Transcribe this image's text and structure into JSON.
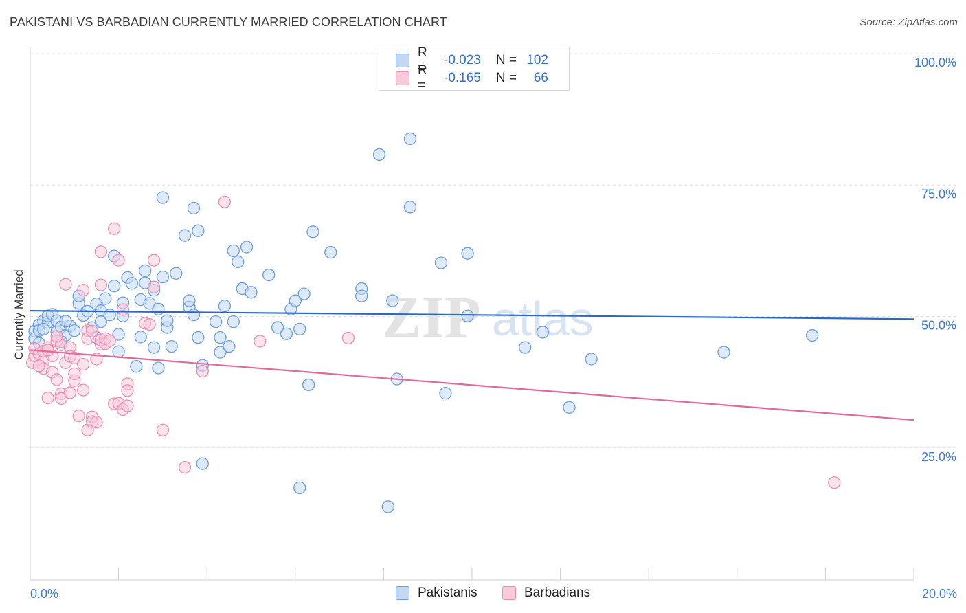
{
  "header": {
    "title": "PAKISTANI VS BARBADIAN CURRENTLY MARRIED CORRELATION CHART",
    "source": "Source: ZipAtlas.com"
  },
  "watermark": {
    "zip": "ZIP",
    "atlas": "atlas"
  },
  "legend_top": {
    "rows": [
      {
        "r_label": "R =",
        "r_value": "-0.023",
        "n_label": "N =",
        "n_value": "102",
        "color": "#6a9ee0"
      },
      {
        "r_label": "R =",
        "r_value": "-0.165",
        "n_label": "N =",
        "n_value": "66",
        "color": "#ea8fb0"
      }
    ]
  },
  "colors": {
    "blue_fill": "#c4d8f4",
    "blue_stroke": "#6a9ee0",
    "blue_line": "#2469cc",
    "pink_fill": "#f8cada",
    "pink_stroke": "#ea8fb0",
    "pink_line": "#e2689a",
    "axis_text": "#3d7bd1",
    "grid": "#e2e2e2"
  },
  "chart_data": {
    "type": "scatter",
    "title": "PAKISTANI VS BARBADIAN CURRENTLY MARRIED CORRELATION CHART",
    "xlabel": "",
    "ylabel": "Currently Married",
    "xlim": [
      0,
      20
    ],
    "ylim": [
      0,
      100
    ],
    "x_tick_labels": [
      "0.0%",
      "20.0%"
    ],
    "y_tick_labels": [
      "25.0%",
      "50.0%",
      "75.0%",
      "100.0%"
    ],
    "y_ticks": [
      25,
      50,
      75,
      100
    ],
    "grid": true,
    "legend": [
      "Pakistanis",
      "Barbadians"
    ],
    "series": [
      {
        "name": "Pakistanis",
        "stats": {
          "R": -0.023,
          "N": 102
        },
        "trend": {
          "x": [
            0,
            20
          ],
          "y": [
            51.1,
            49.5
          ]
        },
        "points": [
          [
            0.1,
            47.2
          ],
          [
            0.1,
            45.8
          ],
          [
            0.2,
            48.4
          ],
          [
            0.2,
            47.3
          ],
          [
            0.3,
            49.2
          ],
          [
            0.2,
            44.9
          ],
          [
            0.4,
            48.9
          ],
          [
            0.4,
            50.1
          ],
          [
            0.5,
            50.4
          ],
          [
            0.6,
            49.2
          ],
          [
            0.6,
            47.1
          ],
          [
            0.7,
            48.0
          ],
          [
            0.8,
            46.4
          ],
          [
            0.9,
            48.2
          ],
          [
            1.0,
            47.3
          ],
          [
            1.1,
            52.5
          ],
          [
            1.1,
            53.9
          ],
          [
            1.2,
            50.2
          ],
          [
            1.3,
            51.0
          ],
          [
            1.4,
            47.9
          ],
          [
            1.5,
            52.4
          ],
          [
            1.6,
            51.1
          ],
          [
            1.6,
            49.0
          ],
          [
            1.7,
            53.4
          ],
          [
            1.8,
            50.3
          ],
          [
            1.9,
            55.8
          ],
          [
            1.9,
            61.5
          ],
          [
            2.0,
            43.3
          ],
          [
            2.0,
            46.6
          ],
          [
            2.1,
            50.1
          ],
          [
            2.1,
            52.6
          ],
          [
            2.2,
            57.4
          ],
          [
            2.3,
            56.3
          ],
          [
            2.4,
            40.5
          ],
          [
            2.5,
            53.2
          ],
          [
            2.5,
            46.1
          ],
          [
            2.6,
            56.4
          ],
          [
            2.6,
            58.7
          ],
          [
            2.7,
            52.5
          ],
          [
            2.8,
            55.0
          ],
          [
            2.8,
            44.1
          ],
          [
            2.9,
            40.2
          ],
          [
            2.9,
            51.4
          ],
          [
            3.0,
            57.5
          ],
          [
            3.0,
            72.6
          ],
          [
            3.1,
            47.9
          ],
          [
            3.1,
            49.2
          ],
          [
            3.2,
            44.3
          ],
          [
            3.3,
            58.2
          ],
          [
            3.5,
            65.4
          ],
          [
            3.6,
            51.8
          ],
          [
            3.6,
            53.0
          ],
          [
            3.7,
            70.6
          ],
          [
            3.7,
            50.3
          ],
          [
            3.8,
            66.3
          ],
          [
            3.8,
            46.0
          ],
          [
            3.9,
            40.7
          ],
          [
            3.9,
            22.0
          ],
          [
            4.2,
            49.0
          ],
          [
            4.3,
            43.2
          ],
          [
            4.3,
            46.0
          ],
          [
            4.4,
            52.0
          ],
          [
            4.5,
            44.3
          ],
          [
            4.6,
            49.0
          ],
          [
            4.6,
            62.5
          ],
          [
            4.7,
            60.4
          ],
          [
            4.8,
            55.3
          ],
          [
            5.0,
            54.6
          ],
          [
            4.9,
            63.2
          ],
          [
            5.4,
            57.9
          ],
          [
            5.6,
            47.9
          ],
          [
            5.8,
            46.7
          ],
          [
            5.9,
            51.4
          ],
          [
            6.0,
            53.0
          ],
          [
            6.1,
            47.6
          ],
          [
            6.1,
            17.4
          ],
          [
            6.2,
            54.3
          ],
          [
            6.3,
            37.0
          ],
          [
            6.4,
            66.1
          ],
          [
            6.8,
            62.2
          ],
          [
            7.5,
            55.3
          ],
          [
            7.5,
            53.9
          ],
          [
            7.9,
            80.8
          ],
          [
            8.1,
            13.8
          ],
          [
            8.2,
            53.0
          ],
          [
            8.3,
            38.1
          ],
          [
            8.6,
            70.8
          ],
          [
            8.6,
            83.8
          ],
          [
            9.3,
            60.2
          ],
          [
            9.4,
            35.4
          ],
          [
            9.9,
            62.0
          ],
          [
            9.9,
            50.1
          ],
          [
            11.2,
            44.1
          ],
          [
            11.6,
            47.0
          ],
          [
            12.2,
            32.7
          ],
          [
            12.7,
            41.9
          ],
          [
            15.7,
            43.2
          ],
          [
            17.7,
            46.4
          ],
          [
            0.3,
            47.6
          ],
          [
            0.7,
            45.2
          ],
          [
            1.5,
            46.0
          ],
          [
            0.8,
            49.1
          ]
        ]
      },
      {
        "name": "Barbadians",
        "stats": {
          "R": -0.165,
          "N": 66
        },
        "trend": {
          "x": [
            0,
            20
          ],
          "y": [
            43.6,
            30.3
          ]
        },
        "points": [
          [
            0.05,
            41.2
          ],
          [
            0.1,
            42.5
          ],
          [
            0.1,
            43.9
          ],
          [
            0.2,
            42.9
          ],
          [
            0.3,
            41.6
          ],
          [
            0.3,
            40.1
          ],
          [
            0.3,
            43.4
          ],
          [
            0.4,
            44.1
          ],
          [
            0.4,
            34.5
          ],
          [
            0.5,
            39.4
          ],
          [
            0.5,
            42.5
          ],
          [
            0.6,
            45.3
          ],
          [
            0.6,
            38.0
          ],
          [
            0.7,
            35.3
          ],
          [
            0.7,
            44.6
          ],
          [
            0.7,
            34.4
          ],
          [
            0.8,
            56.1
          ],
          [
            0.8,
            41.2
          ],
          [
            0.9,
            35.5
          ],
          [
            0.9,
            44.1
          ],
          [
            0.9,
            42.4
          ],
          [
            1.0,
            37.8
          ],
          [
            1.0,
            42.1
          ],
          [
            1.1,
            31.1
          ],
          [
            1.2,
            40.9
          ],
          [
            1.2,
            36.0
          ],
          [
            1.2,
            55.0
          ],
          [
            1.3,
            28.4
          ],
          [
            1.3,
            47.3
          ],
          [
            1.3,
            45.8
          ],
          [
            1.4,
            30.9
          ],
          [
            1.4,
            30.0
          ],
          [
            1.4,
            47.2
          ],
          [
            1.5,
            41.9
          ],
          [
            1.5,
            29.9
          ],
          [
            1.6,
            44.7
          ],
          [
            1.6,
            45.5
          ],
          [
            1.6,
            62.3
          ],
          [
            1.6,
            56.0
          ],
          [
            1.7,
            44.8
          ],
          [
            1.7,
            45.8
          ],
          [
            1.8,
            45.4
          ],
          [
            1.9,
            66.7
          ],
          [
            1.9,
            33.4
          ],
          [
            2.0,
            60.7
          ],
          [
            2.0,
            33.5
          ],
          [
            2.1,
            32.3
          ],
          [
            2.1,
            51.3
          ],
          [
            2.2,
            37.2
          ],
          [
            2.2,
            35.9
          ],
          [
            2.2,
            33.0
          ],
          [
            2.6,
            48.7
          ],
          [
            2.7,
            48.5
          ],
          [
            2.8,
            60.7
          ],
          [
            2.8,
            55.6
          ],
          [
            3.0,
            28.4
          ],
          [
            3.5,
            21.3
          ],
          [
            3.9,
            39.6
          ],
          [
            4.4,
            71.8
          ],
          [
            5.2,
            45.3
          ],
          [
            7.2,
            45.9
          ],
          [
            18.2,
            18.4
          ],
          [
            0.2,
            40.6
          ],
          [
            0.4,
            43.6
          ],
          [
            0.6,
            46.2
          ],
          [
            1.0,
            39.1
          ]
        ]
      }
    ]
  },
  "legend_bottom": {
    "items": [
      {
        "label": "Pakistanis",
        "color": "#6a9ee0"
      },
      {
        "label": "Barbadians",
        "color": "#ea8fb0"
      }
    ]
  }
}
